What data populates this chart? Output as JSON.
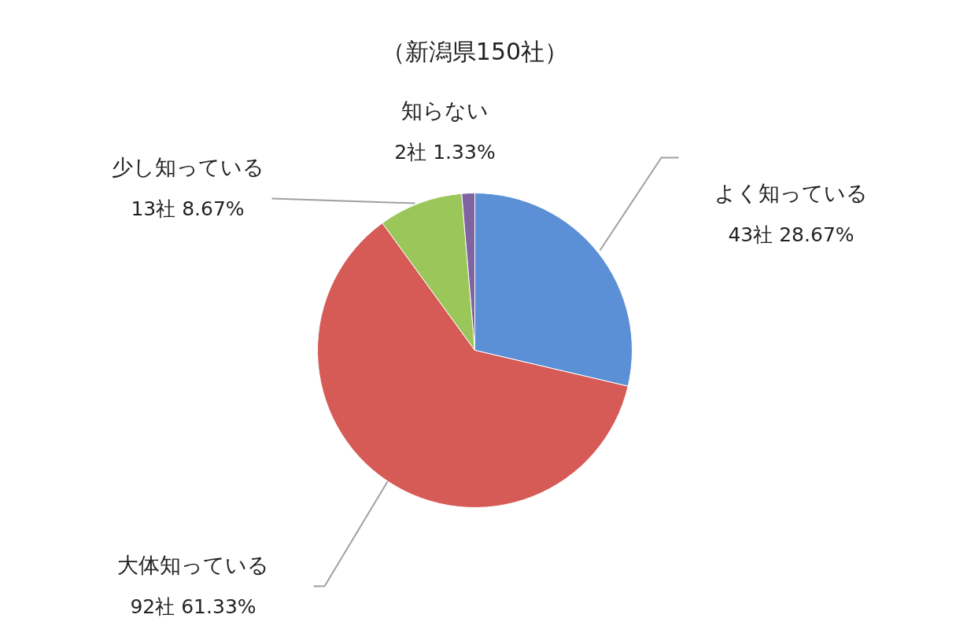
{
  "chart_data": {
    "type": "pie",
    "title": "（新潟県150社）",
    "categories": [
      "よく知っている",
      "大体知っている",
      "少し知っている",
      "知らない"
    ],
    "values": [
      43,
      92,
      13,
      2
    ],
    "value_labels": [
      "43社 28.67%",
      "92社 61.33%",
      "13社 8.67%",
      "2社 1.33%"
    ],
    "colors": [
      "#5b8fd6",
      "#d65a55",
      "#9bc65a",
      "#8064a2"
    ]
  }
}
